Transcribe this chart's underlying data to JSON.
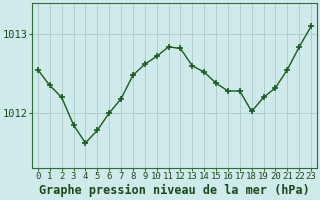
{
  "x": [
    0,
    1,
    2,
    3,
    4,
    5,
    6,
    7,
    8,
    9,
    10,
    11,
    12,
    13,
    14,
    15,
    16,
    17,
    18,
    19,
    20,
    21,
    22,
    23
  ],
  "y": [
    1012.55,
    1012.35,
    1012.2,
    1011.85,
    1011.62,
    1011.78,
    1012.0,
    1012.18,
    1012.48,
    1012.62,
    1012.72,
    1012.84,
    1012.82,
    1012.6,
    1012.52,
    1012.38,
    1012.28,
    1012.28,
    1012.02,
    1012.2,
    1012.32,
    1012.55,
    1012.84,
    1013.1
  ],
  "line_color": "#1a5c1a",
  "marker": "+",
  "marker_size": 4,
  "marker_linewidth": 1.2,
  "linewidth": 1.0,
  "background_color": "#ceeaea",
  "grid_color": "#b0cece",
  "xlabel": "Graphe pression niveau de la mer (hPa)",
  "xlabel_fontsize": 8.5,
  "ytick_labels": [
    "1012",
    "1013"
  ],
  "ylim": [
    1011.3,
    1013.4
  ],
  "xlim": [
    -0.5,
    23.5
  ],
  "xtick_fontsize": 6.5,
  "ytick_fontsize": 7.5,
  "spine_color": "#2d6e2d"
}
